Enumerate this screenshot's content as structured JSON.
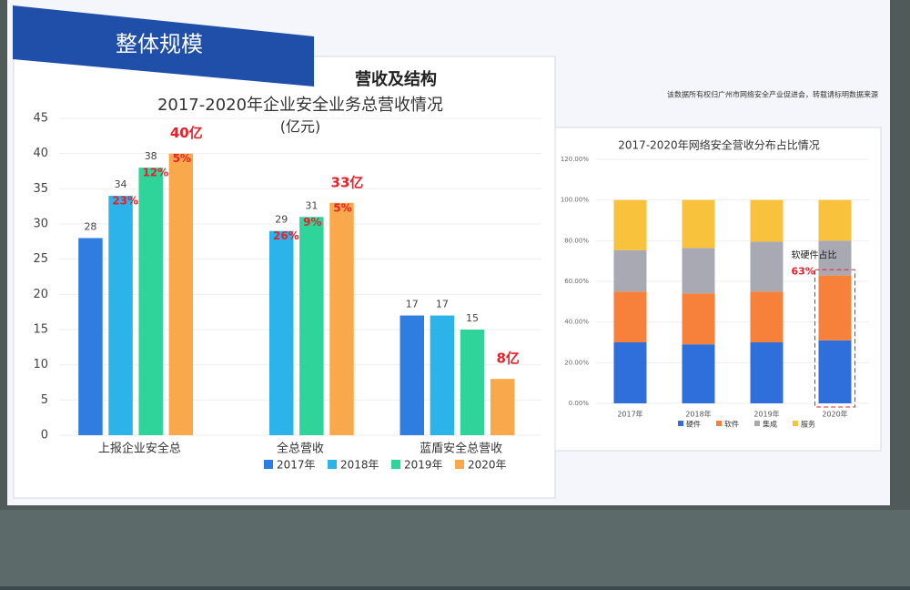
{
  "header": {
    "title": "整体规模",
    "subtitle": "营收及结构",
    "note": "该数据所有权归广州市网络安全产业促进会，转载请标明数据来源"
  },
  "chart_data": [
    {
      "type": "bar",
      "title": "2017-2020年企业安全业务总营收情况",
      "subtitle": "(亿元)",
      "categories": [
        "上报企业安全总",
        "全总营收",
        "蓝盾安全总营收"
      ],
      "series": [
        {
          "name": "2017年",
          "color": "#2f7de1",
          "values": [
            28,
            null,
            17
          ]
        },
        {
          "name": "2018年",
          "color": "#2cb4ea",
          "values": [
            34,
            29,
            17
          ],
          "growth_labels": [
            "23%",
            "26%",
            null
          ]
        },
        {
          "name": "2019年",
          "color": "#2fd49b",
          "values": [
            38,
            31,
            15
          ],
          "growth_labels": [
            "12%",
            "9%",
            null
          ]
        },
        {
          "name": "2020年",
          "color": "#f9a94b",
          "values": [
            40,
            33,
            8
          ],
          "value_labels": [
            "40亿",
            "33亿",
            "8亿"
          ],
          "growth_labels": [
            "5%",
            "5%",
            null
          ]
        }
      ],
      "ylim": [
        0,
        45
      ],
      "yticks": [
        0,
        5,
        10,
        15,
        20,
        25,
        30,
        35,
        40,
        45
      ],
      "grid": true
    },
    {
      "type": "stacked-bar",
      "title": "2017-2020年网络安全营收分布占比情况",
      "categories": [
        "2017年",
        "2018年",
        "2019年",
        "2020年"
      ],
      "series": [
        {
          "name": "硬件",
          "color": "#2f6fdc",
          "values": [
            30,
            29,
            30,
            31
          ]
        },
        {
          "name": "软件",
          "color": "#f7803a",
          "values": [
            25,
            25,
            25,
            32
          ]
        },
        {
          "name": "集成",
          "color": "#a9a9b3",
          "values": [
            20.36,
            22.43,
            24.5,
            17
          ]
        },
        {
          "name": "服务",
          "color": "#f9c23c",
          "values": [
            24.62,
            23.57,
            20.5,
            20
          ]
        }
      ],
      "ylim": [
        0,
        120
      ],
      "yticks": [
        {
          "value": 0,
          "label": "0.00%"
        },
        {
          "value": 20,
          "label": "20.00%"
        },
        {
          "value": 40,
          "label": "40.00%"
        },
        {
          "value": 60,
          "label": "60.00%"
        },
        {
          "value": 80,
          "label": "80.00%"
        },
        {
          "value": 100,
          "label": "100.00%"
        },
        {
          "value": 120,
          "label": "120.00%"
        }
      ],
      "grid": true,
      "annotation": {
        "title": "软硬件占比",
        "value": "63%"
      }
    }
  ]
}
